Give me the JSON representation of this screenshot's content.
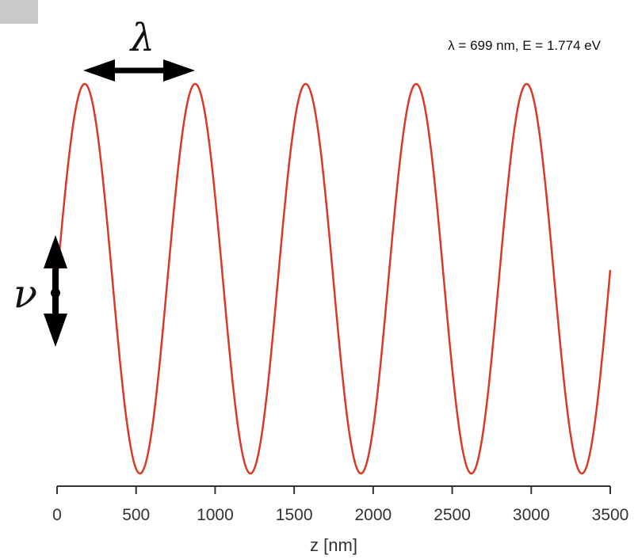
{
  "chart_data": {
    "type": "line",
    "title": "",
    "xlabel": "z [nm]",
    "ylabel": "",
    "xlim": [
      0,
      3500
    ],
    "x_ticks": [
      0,
      500,
      1000,
      1500,
      2000,
      2500,
      3000,
      3500
    ],
    "x_tick_labels": [
      "0",
      "500",
      "1000",
      "1500",
      "2000",
      "2500",
      "3000",
      "3500"
    ],
    "y_axis_visible": false,
    "grid": false,
    "series": [
      {
        "function": "sine",
        "wavelength": 699,
        "amplitude": 1,
        "phase_start_value": 0.0,
        "x_range": [
          0,
          3500
        ],
        "color": "#d93a26"
      }
    ],
    "annotation": {
      "lambda_symbol": "λ",
      "info_text": "λ = 699 nm,  E = 1.774 eV",
      "nu_symbol": "ν"
    }
  },
  "colors": {
    "curve": "#d93a26",
    "axis": "#333333",
    "arrows": "#000000",
    "corner_box": "#c9c9c9"
  }
}
